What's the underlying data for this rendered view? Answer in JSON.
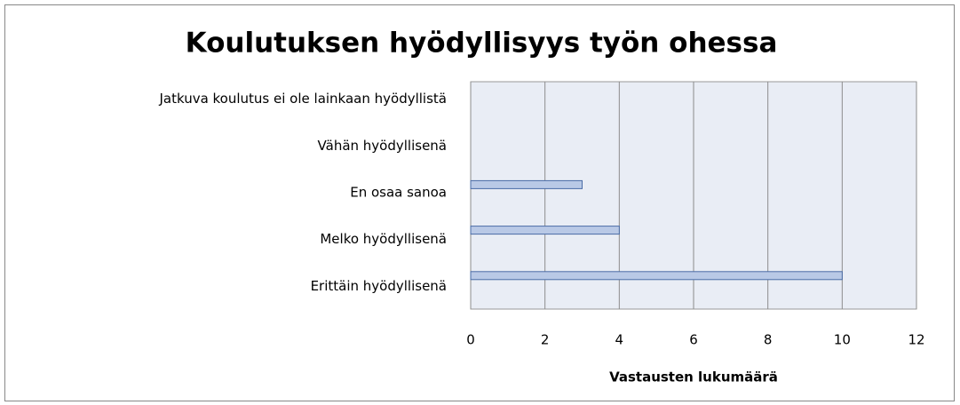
{
  "chart_data": {
    "type": "bar",
    "orientation": "horizontal",
    "title": "Koulutuksen hyödyllisyys työn ohessa",
    "x_label": "Vastausten lukumäärä",
    "categories": [
      "Jatkuva koulutus ei ole lainkaan hyödyllistä",
      "Vähän hyödyllisenä",
      "En osaa sanoa",
      "Melko hyödyllisenä",
      "Erittäin hyödyllisenä"
    ],
    "values": [
      0,
      0,
      3,
      4,
      10
    ],
    "color": "#b9c9e6",
    "xlim": [
      0,
      12
    ],
    "xticks": [
      0,
      2,
      4,
      6,
      8,
      10,
      12
    ],
    "grid": true
  }
}
